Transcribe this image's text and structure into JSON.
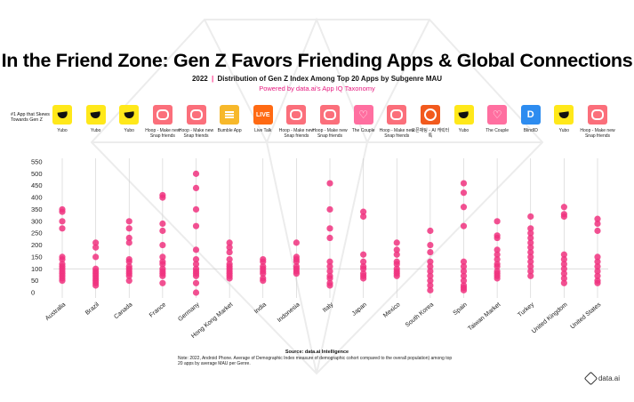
{
  "title": "In the Friend Zone: Gen Z Favors Friending Apps & Global Connections",
  "subtitle_year": "2022",
  "subtitle_separator": "|",
  "subtitle_text": "Distribution of Gen Z Index Among Top 20 Apps by Subgenre MAU",
  "powered_by": "Powered by data.ai's App IQ Taxonomy",
  "top_app_label": "#1 App that Skews Towards Gen Z",
  "apps": [
    {
      "name": "Yubo",
      "icon": "yubo-icon",
      "kind": "yubo"
    },
    {
      "name": "Yubo",
      "icon": "yubo-icon",
      "kind": "yubo"
    },
    {
      "name": "Yubo",
      "icon": "yubo-icon",
      "kind": "yubo"
    },
    {
      "name": "Hoop - Make new Snap friends",
      "icon": "hoop-icon",
      "kind": "hoop"
    },
    {
      "name": "Hoop - Make new Snap friends",
      "icon": "hoop-icon",
      "kind": "hoop"
    },
    {
      "name": "Bumble App",
      "icon": "bumble-icon",
      "kind": "bumble"
    },
    {
      "name": "Live Talk",
      "icon": "live-talk-icon",
      "kind": "live",
      "glyph": "LIVE"
    },
    {
      "name": "Hoop - Make new Snap friends",
      "icon": "hoop-icon",
      "kind": "hoop"
    },
    {
      "name": "Hoop - Make new Snap friends",
      "icon": "hoop-icon",
      "kind": "hoop"
    },
    {
      "name": "The Couple",
      "icon": "heart-icon",
      "kind": "couple",
      "glyph": "♡"
    },
    {
      "name": "Hoop - Make new Snap friends",
      "icon": "hoop-icon",
      "kind": "hoop"
    },
    {
      "name": "제페토 ZEPETO (오픈채팅 - 캐릭터 톡)",
      "display": "오픈채팅 - AI 캐릭터 톡",
      "icon": "zepeto-icon",
      "kind": "zepeto"
    },
    {
      "name": "Yubo",
      "icon": "yubo-icon",
      "kind": "yubo"
    },
    {
      "name": "The Couple",
      "icon": "heart-icon",
      "kind": "couple",
      "glyph": "♡"
    },
    {
      "name": "BlindID",
      "icon": "blindid-icon",
      "kind": "blind",
      "glyph": "D"
    },
    {
      "name": "Yubo",
      "icon": "yubo-icon",
      "kind": "yubo"
    },
    {
      "name": "Hoop - Make new Snap friends",
      "icon": "hoop-icon",
      "kind": "hoop"
    }
  ],
  "chart_data": {
    "type": "scatter",
    "title": "",
    "xlabel": "",
    "ylabel": "",
    "ylim": [
      0,
      550
    ],
    "yticks": [
      0,
      50,
      100,
      150,
      200,
      250,
      300,
      350,
      400,
      450,
      500,
      550
    ],
    "grid": "vertical-lines-per-category",
    "point_color": "#f0327f",
    "categories": [
      "Australia",
      "Brazil",
      "Canada",
      "France",
      "Germany",
      "Hong Kong Market",
      "India",
      "Indonesia",
      "Italy",
      "Japan",
      "Mexico",
      "South Korea",
      "Spain",
      "Taiwan Market",
      "Turkey",
      "United Kingdom",
      "United States"
    ],
    "series": [
      {
        "values": [
          [
            350,
            340,
            300,
            270,
            150,
            140,
            120,
            110,
            100,
            90,
            80,
            70,
            60,
            50
          ],
          [
            210,
            190,
            150,
            100,
            90,
            80,
            70,
            60,
            50,
            40,
            30
          ],
          [
            300,
            270,
            230,
            210,
            140,
            130,
            110,
            100,
            90,
            80,
            70,
            50
          ],
          [
            410,
            400,
            290,
            260,
            200,
            150,
            130,
            120,
            100,
            90,
            80,
            70,
            40
          ],
          [
            500,
            440,
            350,
            280,
            180,
            140,
            120,
            100,
            90,
            80,
            70,
            40,
            0
          ],
          [
            210,
            190,
            170,
            140,
            120,
            110,
            100,
            90,
            80,
            70,
            60
          ],
          [
            140,
            130,
            110,
            100,
            90,
            80,
            60,
            50
          ],
          [
            210,
            150,
            140,
            130,
            110,
            100,
            90,
            80
          ],
          [
            460,
            350,
            270,
            230,
            130,
            110,
            90,
            70,
            60,
            40,
            30
          ],
          [
            340,
            320,
            160,
            130,
            110,
            100,
            80,
            70,
            60
          ],
          [
            210,
            180,
            160,
            130,
            120,
            100,
            90,
            80,
            70
          ],
          [
            260,
            200,
            170,
            130,
            110,
            90,
            70,
            50,
            30,
            10
          ],
          [
            460,
            420,
            360,
            280,
            130,
            110,
            90,
            70,
            50,
            30,
            20,
            10
          ],
          [
            300,
            240,
            230,
            180,
            160,
            140,
            120,
            110,
            90,
            80,
            70,
            60
          ],
          [
            320,
            270,
            250,
            230,
            210,
            190,
            170,
            150,
            130,
            110,
            90,
            70
          ],
          [
            360,
            330,
            320,
            160,
            140,
            120,
            100,
            80,
            60,
            40
          ],
          [
            310,
            290,
            260,
            150,
            130,
            110,
            90,
            70,
            50,
            40
          ]
        ]
      }
    ]
  },
  "source": "Source: data.ai Intelligence",
  "note": "Note: 2022, Android Phone. Average of Demographic Index measure of demographic cohort compared to the overall population) among top 20 apps by average MAU per Genre.",
  "logo_text": "data.ai",
  "logo_icon": "data-ai-logo-icon"
}
